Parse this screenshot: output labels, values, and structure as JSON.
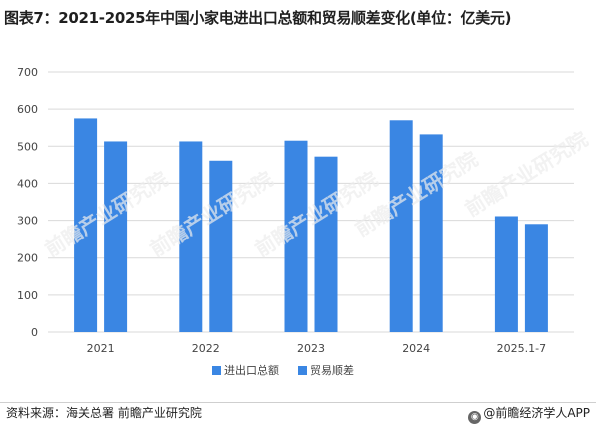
{
  "title": "图表7：2021-2025年中国小家电进出口总额和贸易顺差变化(单位：亿美元)",
  "chart_data": {
    "type": "bar",
    "categories": [
      "2021",
      "2022",
      "2023",
      "2024",
      "2025.1-7"
    ],
    "series": [
      {
        "name": "进出口总额",
        "values": [
          575,
          513,
          515,
          570,
          311
        ],
        "color": "#3a86e3"
      },
      {
        "name": "贸易顺差",
        "values": [
          513,
          461,
          472,
          532,
          290
        ],
        "color": "#3a86e3"
      }
    ],
    "ylim": [
      0,
      700
    ],
    "yticks": [
      "0",
      "100",
      "200",
      "300",
      "400",
      "500",
      "600",
      "700"
    ],
    "grid": true,
    "legend": "bottom",
    "xlabel": "",
    "ylabel": ""
  },
  "footer": {
    "source": "资料来源：海关总署 前瞻产业研究院",
    "brand": "@前瞻经济学人APP"
  },
  "watermark_text": "前瞻产业研究院"
}
